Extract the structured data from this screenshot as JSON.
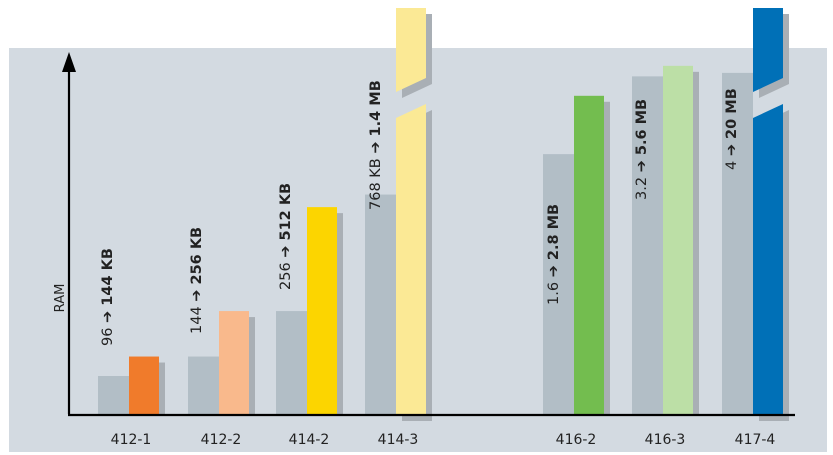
{
  "chart_data": {
    "type": "bar",
    "ylabel": "RAM",
    "categories": [
      "412-1",
      "412-2",
      "414-2",
      "414-3",
      "416-2",
      "416-3",
      "417-4"
    ],
    "series": [
      {
        "values": [
          96,
          144,
          256,
          768,
          1600,
          3200,
          4000
        ]
      },
      {
        "values": [
          144,
          256,
          512,
          1400,
          2800,
          5600,
          20000
        ]
      }
    ],
    "labels": [
      {
        "old": "96",
        "arrow": "➔",
        "new": "144 KB"
      },
      {
        "old": "144",
        "arrow": "➔",
        "new": "256 KB"
      },
      {
        "old": "256",
        "arrow": "➔",
        "new": "512 KB"
      },
      {
        "old": "768 KB",
        "arrow": "➔",
        "new": "1.4 MB"
      },
      {
        "old": "1.6",
        "arrow": "➔",
        "new": "2.8 MB"
      },
      {
        "old": "3.2",
        "arrow": "➔",
        "new": "5.6 MB"
      },
      {
        "old": "4",
        "arrow": "➔",
        "new": "20 MB"
      }
    ],
    "broken_bars": [
      "414-3",
      "417-4"
    ],
    "grid": false,
    "legend": "none",
    "colors": {
      "background": "#d3dae1",
      "shadow": "#a9afb5",
      "old_bar": "#b2bec6",
      "axis": "#000000",
      "new_bars": [
        "#f07b2b",
        "#f9b98c",
        "#fcd500",
        "#fbe995",
        "#73bd4f",
        "#bcdfa6",
        "#0070b7"
      ]
    }
  }
}
